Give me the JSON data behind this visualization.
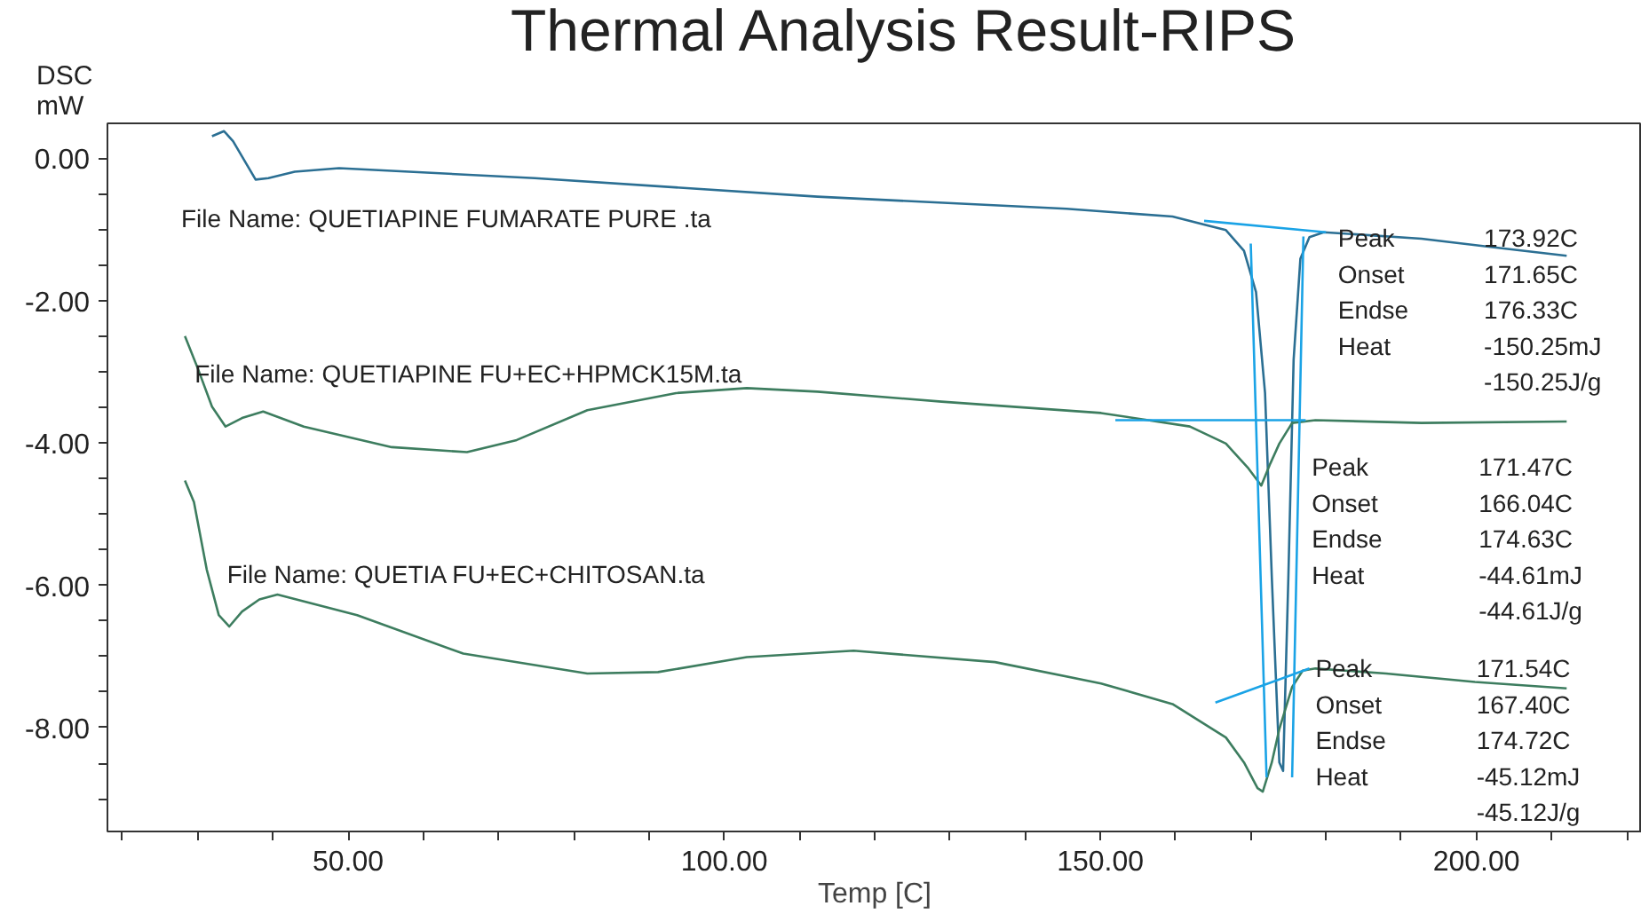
{
  "chart_data": {
    "type": "line",
    "title": "Thermal Analysis Result-RIPS",
    "xlabel": "Temp [C]",
    "ylabel": "DSC\nmW",
    "xlim": [
      18,
      222
    ],
    "ylim": [
      -9.46,
      0.49
    ],
    "xticks": [
      {
        "value": 20,
        "label": null
      },
      {
        "value": 30,
        "label": null
      },
      {
        "value": 40,
        "label": null
      },
      {
        "value": 50,
        "label": "50.00"
      },
      {
        "value": 60,
        "label": null
      },
      {
        "value": 70,
        "label": null
      },
      {
        "value": 80,
        "label": null
      },
      {
        "value": 90,
        "label": null
      },
      {
        "value": 100,
        "label": "100.00"
      },
      {
        "value": 110,
        "label": null
      },
      {
        "value": 120,
        "label": null
      },
      {
        "value": 130,
        "label": null
      },
      {
        "value": 140,
        "label": null
      },
      {
        "value": 150,
        "label": "150.00"
      },
      {
        "value": 160,
        "label": null
      },
      {
        "value": 170,
        "label": null
      },
      {
        "value": 180,
        "label": null
      },
      {
        "value": 190,
        "label": null
      },
      {
        "value": 200,
        "label": "200.00"
      },
      {
        "value": 210,
        "label": null
      },
      {
        "value": 220,
        "label": null
      }
    ],
    "yticks": [
      {
        "value": 0,
        "label": "0.00"
      },
      {
        "value": -0.5,
        "label": null
      },
      {
        "value": -1,
        "label": null
      },
      {
        "value": -1.5,
        "label": null
      },
      {
        "value": -2,
        "label": "-2.00"
      },
      {
        "value": -2.5,
        "label": null
      },
      {
        "value": -3,
        "label": null
      },
      {
        "value": -3.5,
        "label": null
      },
      {
        "value": -4,
        "label": "-4.00"
      },
      {
        "value": -4.5,
        "label": null
      },
      {
        "value": -5,
        "label": null
      },
      {
        "value": -5.5,
        "label": null
      },
      {
        "value": -6,
        "label": "-6.00"
      },
      {
        "value": -6.5,
        "label": null
      },
      {
        "value": -7,
        "label": null
      },
      {
        "value": -7.5,
        "label": null
      },
      {
        "value": -8,
        "label": "-8.00"
      },
      {
        "value": -8.5,
        "label": null
      },
      {
        "value": -9,
        "label": null
      }
    ],
    "grid": false,
    "marker": "none",
    "line_style": "solid",
    "series": [
      {
        "name": "File Name: QUETIAPINE FUMARATE PURE .ta",
        "color": "#2b6f93",
        "x": [
          31.9,
          33.5,
          34.7,
          37.7,
          39.4,
          42.9,
          48.8,
          74.8,
          112.4,
          145.5,
          159.6,
          166.7,
          169.1,
          170.7,
          171.9,
          172.8,
          173.8,
          174.3,
          175.0,
          175.7,
          176.6,
          177.8,
          179.7,
          192.7,
          202.1,
          212.0
        ],
        "values": [
          0.31,
          0.38,
          0.24,
          -0.3,
          -0.28,
          -0.19,
          -0.14,
          -0.28,
          -0.54,
          -0.71,
          -0.82,
          -1.01,
          -1.3,
          -1.88,
          -3.3,
          -5.89,
          -8.49,
          -8.61,
          -5.89,
          -2.83,
          -1.41,
          -1.11,
          -1.04,
          -1.13,
          -1.25,
          -1.37
        ]
      },
      {
        "name": "File Name: QUETIAPINE FU+EC+HPMCK15M.ta",
        "color": "#3d7d5f",
        "x": [
          28.3,
          30.0,
          31.9,
          33.7,
          35.9,
          38.7,
          44.1,
          55.8,
          65.8,
          72.4,
          81.8,
          93.6,
          103.0,
          112.4,
          128.9,
          150.1,
          161.9,
          166.7,
          169.7,
          171.4,
          172.6,
          173.8,
          175.5,
          178.6,
          192.7,
          212.0
        ],
        "values": [
          -2.5,
          -2.95,
          -3.49,
          -3.77,
          -3.65,
          -3.56,
          -3.77,
          -4.06,
          -4.13,
          -3.96,
          -3.54,
          -3.3,
          -3.23,
          -3.28,
          -3.42,
          -3.58,
          -3.77,
          -4.01,
          -4.36,
          -4.6,
          -4.29,
          -4.01,
          -3.72,
          -3.68,
          -3.72,
          -3.7
        ]
      },
      {
        "name": "File Name: QUETIA FU+EC+CHITOSAN.ta",
        "color": "#3d7d5f",
        "x": [
          28.3,
          29.5,
          31.2,
          32.8,
          34.2,
          35.9,
          38.2,
          40.6,
          51.2,
          65.3,
          81.8,
          91.2,
          103.0,
          117.2,
          136.0,
          150.1,
          159.6,
          166.7,
          169.1,
          170.9,
          171.6,
          172.8,
          173.8,
          175.5,
          176.9,
          178.6,
          188.0,
          199.8,
          212.0
        ],
        "values": [
          -4.53,
          -4.83,
          -5.78,
          -6.42,
          -6.58,
          -6.37,
          -6.2,
          -6.13,
          -6.42,
          -6.96,
          -7.24,
          -7.22,
          -7.01,
          -6.92,
          -7.08,
          -7.38,
          -7.67,
          -8.14,
          -8.49,
          -8.85,
          -8.9,
          -8.49,
          -8.02,
          -7.43,
          -7.2,
          -7.17,
          -7.24,
          -7.36,
          -7.45
        ]
      },
      {
        "color": "#1aa3e6",
        "x": [
          163.8,
          180.0,
          null,
          170.0,
          172.1,
          null,
          175.5,
          177.0,
          null,
          152.0,
          177.3,
          null,
          165.3,
          177.8
        ],
        "values": [
          -0.88,
          -1.04,
          null,
          -1.2,
          -8.7,
          null,
          -8.7,
          -1.1,
          null,
          -3.68,
          -3.68,
          null,
          -7.65,
          -7.17
        ]
      }
    ],
    "annotations": [
      "Peak",
      "173.92C",
      "Onset",
      "171.65C",
      "Endse",
      "176.33C",
      "Heat",
      "-150.25mJ",
      "-150.25J/g",
      "Peak",
      "171.47C",
      "Onset",
      "166.04C",
      "Endse",
      "174.63C",
      "Heat",
      "-44.61mJ",
      "-44.61J/g",
      "Peak",
      "171.54C",
      "Onset",
      "167.40C",
      "Endse",
      "174.72C",
      "Heat",
      "-45.12mJ",
      "-45.12J/g"
    ]
  }
}
